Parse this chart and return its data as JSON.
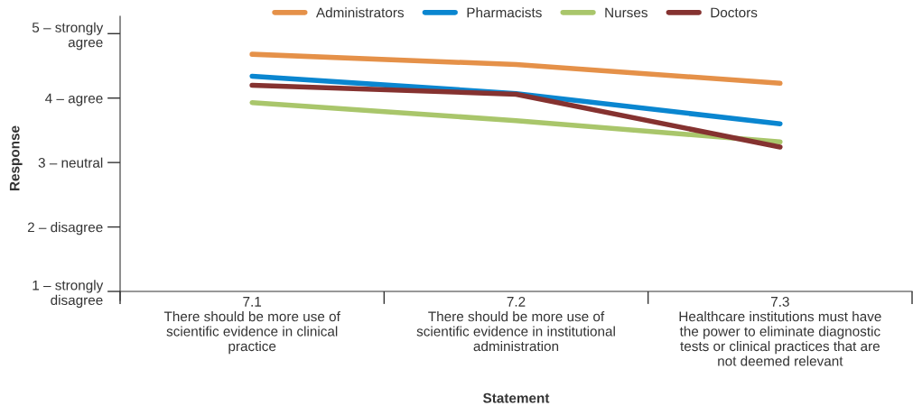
{
  "chart_data": {
    "type": "line",
    "xlabel": "Statement",
    "ylabel": "Response",
    "categories": [
      "7.1\nThere should be more use of\nscientific evidence in clinical\npractice",
      "7.2\nThere should be more use of\nscientific evidence in institutional\nadministration",
      "7.3\nHealthcare institutions must have\nthe power to eliminate diagnostic\ntests or clinical practices that are\nnot deemed relevant"
    ],
    "series": [
      {
        "name": "Administrators",
        "color": "#e59149",
        "values": [
          4.68,
          4.52,
          4.23
        ]
      },
      {
        "name": "Pharmacists",
        "color": "#0a86d0",
        "values": [
          4.34,
          4.07,
          3.6
        ]
      },
      {
        "name": "Nurses",
        "color": "#a9c66b",
        "values": [
          3.93,
          3.65,
          3.32
        ]
      },
      {
        "name": "Doctors",
        "color": "#853230",
        "values": [
          4.2,
          4.06,
          3.24
        ]
      }
    ],
    "ylim": [
      0.86,
      5.27
    ],
    "yticks": [
      {
        "value": 1,
        "label": "1 – strongly\ndisagree"
      },
      {
        "value": 2,
        "label": "2 – disagree"
      },
      {
        "value": 3,
        "label": "3 – neutral"
      },
      {
        "value": 4,
        "label": "4 – agree"
      },
      {
        "value": 5,
        "label": "5 – strongly\nagree"
      }
    ],
    "grid": false,
    "legend": "top",
    "marker": "none",
    "line_style": "solid"
  }
}
